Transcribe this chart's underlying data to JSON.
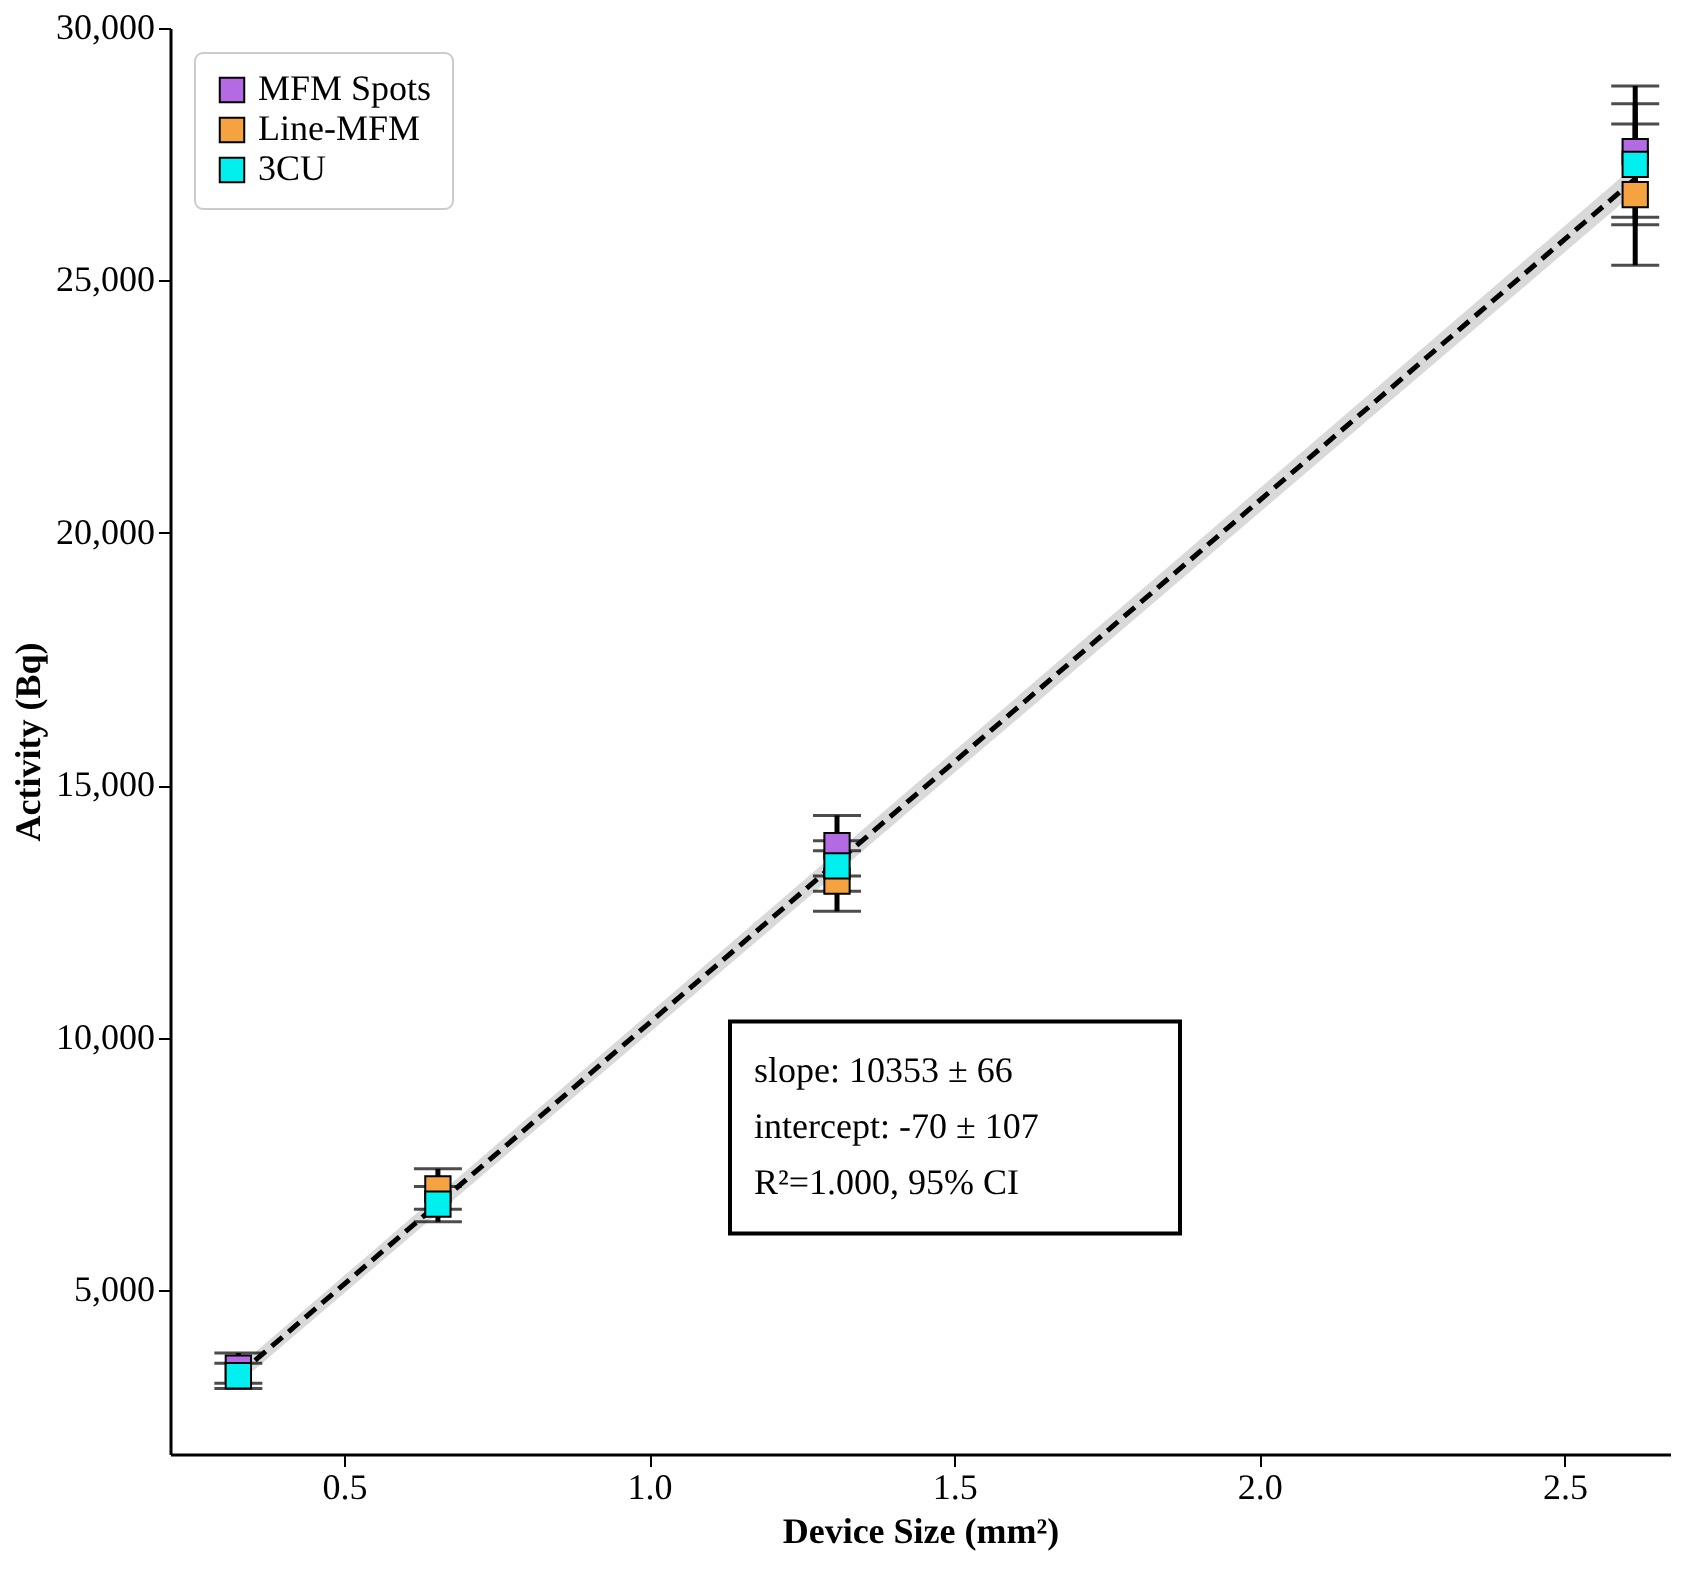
{
  "chart_data": {
    "type": "scatter",
    "xlabel": "Device Size (mm²)",
    "ylabel": "Activity (Bq)",
    "x": [
      0.327,
      0.654,
      1.308,
      2.616
    ],
    "xlim": [
      0.215,
      2.673
    ],
    "xticks": [
      0.5,
      {
        "value": 1,
        "label": "1.0"
      },
      1.5,
      {
        "value": 2,
        "label": "2.0"
      },
      2.5
    ],
    "ylim": [
      1750,
      30000
    ],
    "yticks": [
      {
        "value": 5000,
        "label": "5,000"
      },
      {
        "value": 10000,
        "label": "10,000"
      },
      {
        "value": 15000,
        "label": "15,000"
      },
      {
        "value": 20000,
        "label": "20,000"
      },
      {
        "value": 25000,
        "label": "25,000"
      },
      {
        "value": 30000,
        "label": "30,000"
      }
    ],
    "marker": "square",
    "grid": false,
    "legend": "top left",
    "series": [
      {
        "name": "MFM Spots",
        "color": "#b36ae2",
        "values": [
          3450,
          null,
          13800,
          27550
        ],
        "errors": [
          300,
          null,
          600,
          1300
        ]
      },
      {
        "name": "Line-MFM",
        "color": "#f4a340",
        "values": [
          null,
          7000,
          13100,
          26700
        ],
        "errors": [
          null,
          400,
          600,
          1400
        ]
      },
      {
        "name": "3CU",
        "color": "#00f0f0",
        "values": [
          3300,
          6700,
          13400,
          27300
        ],
        "errors": [
          250,
          350,
          500,
          1200
        ]
      },
      {
        "type": "line",
        "marker": "none",
        "color": "#000000",
        "line_style": "dashed",
        "x": [
          0.327,
          2.616
        ],
        "values": [
          3320,
          27010
        ],
        "lower": [
          3150,
          26750
        ],
        "upper": [
          3480,
          27280
        ]
      }
    ],
    "annotations": [
      "slope: 10353 ± 66",
      "intercept: -70 ± 107",
      "R²=1.000, 95% CI"
    ]
  }
}
